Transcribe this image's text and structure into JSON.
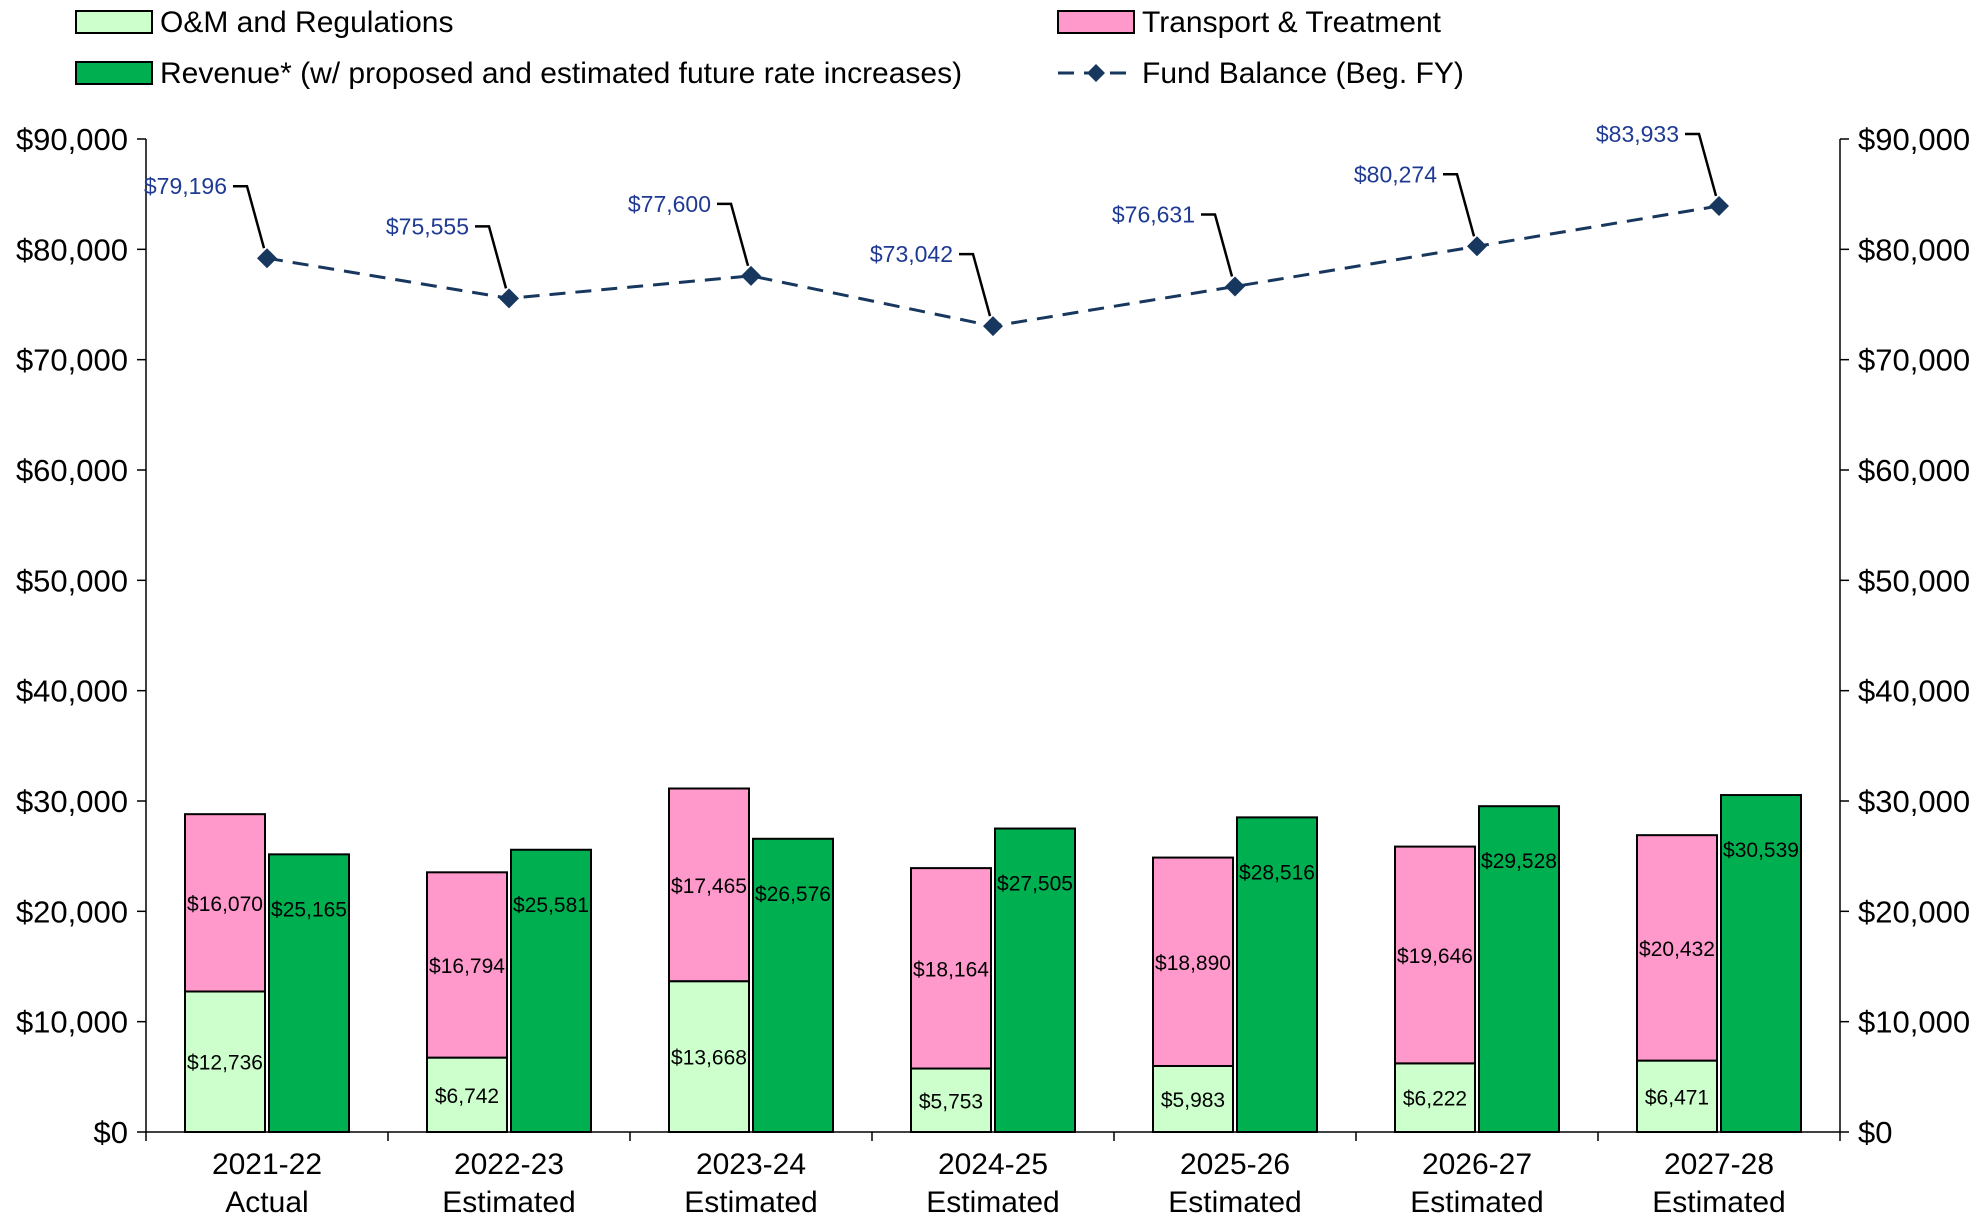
{
  "chart_data": {
    "type": "bar",
    "categories": [
      [
        "2021-22",
        "Actual"
      ],
      [
        "2022-23",
        "Estimated"
      ],
      [
        "2023-24",
        "Estimated"
      ],
      [
        "2024-25",
        "Estimated"
      ],
      [
        "2025-26",
        "Estimated"
      ],
      [
        "2026-27",
        "Estimated"
      ],
      [
        "2027-28",
        "Estimated"
      ]
    ],
    "series": [
      {
        "name": "O&M and Regulations",
        "kind": "stacked-bar",
        "stack": "expenses",
        "color": "#ccffcc",
        "values": [
          12736,
          6742,
          13668,
          5753,
          5983,
          6222,
          6471
        ],
        "labels": [
          "$12,736",
          "$6,742",
          "$13,668",
          "$5,753",
          "$5,983",
          "$6,222",
          "$6,471"
        ]
      },
      {
        "name": "Transport & Treatment",
        "kind": "stacked-bar",
        "stack": "expenses",
        "color": "#ff99cc",
        "values": [
          16070,
          16794,
          17465,
          18164,
          18890,
          19646,
          20432
        ],
        "labels": [
          "$16,070",
          "$16,794",
          "$17,465",
          "$18,164",
          "$18,890",
          "$19,646",
          "$20,432"
        ]
      },
      {
        "name": "Revenue* (w/ proposed and estimated future rate increases)",
        "kind": "bar",
        "stack": "revenue",
        "color": "#00b050",
        "values": [
          25165,
          25581,
          26576,
          27505,
          28516,
          29528,
          30539
        ],
        "labels": [
          "$25,165",
          "$25,581",
          "$26,576",
          "$27,505",
          "$28,516",
          "$29,528",
          "$30,539"
        ]
      },
      {
        "name": "Fund Balance (Beg. FY)",
        "kind": "line",
        "color": "#17375e",
        "dashed": true,
        "marker": "diamond",
        "values": [
          79196,
          75555,
          77600,
          73042,
          76631,
          80274,
          83933
        ],
        "labels": [
          "$79,196",
          "$75,555",
          "$77,600",
          "$73,042",
          "$76,631",
          "$80,274",
          "$83,933"
        ],
        "label_color": "#1f3a93"
      }
    ],
    "ylim": [
      0,
      90000
    ],
    "yticks": [
      {
        "value": 0,
        "label": "$0"
      },
      {
        "value": 10000,
        "label": "$10,000"
      },
      {
        "value": 20000,
        "label": "$20,000"
      },
      {
        "value": 30000,
        "label": "$30,000"
      },
      {
        "value": 40000,
        "label": "$40,000"
      },
      {
        "value": 50000,
        "label": "$50,000"
      },
      {
        "value": 60000,
        "label": "$60,000"
      },
      {
        "value": 70000,
        "label": "$70,000"
      },
      {
        "value": 80000,
        "label": "$80,000"
      },
      {
        "value": 90000,
        "label": "$90,000"
      }
    ],
    "y_axis_sides": [
      "left",
      "right"
    ],
    "grid": false,
    "legend": "top",
    "title": "",
    "xlabel": "",
    "ylabel": ""
  }
}
